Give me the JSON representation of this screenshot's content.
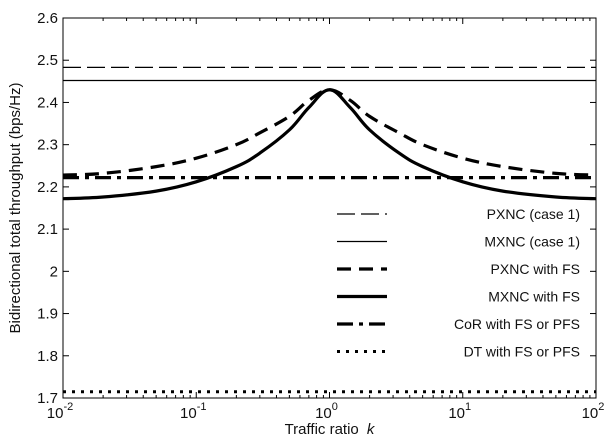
{
  "chart_data": {
    "type": "line",
    "xlabel": "Traffic ratio",
    "xlabel_var": "k",
    "ylabel": "Bidirectional total throughput (bps/Hz)",
    "xscale": "log",
    "xlim": [
      0.01,
      100
    ],
    "ylim": [
      1.7,
      2.6
    ],
    "x_ticks": [
      0.01,
      0.1,
      1,
      10,
      100
    ],
    "x_tick_labels": [
      {
        "base": "10",
        "exp": "-2"
      },
      {
        "base": "10",
        "exp": "-1"
      },
      {
        "base": "10",
        "exp": "0"
      },
      {
        "base": "10",
        "exp": "1"
      },
      {
        "base": "10",
        "exp": "2"
      }
    ],
    "y_ticks": [
      1.7,
      1.8,
      1.9,
      2.0,
      2.1,
      2.2,
      2.3,
      2.4,
      2.5,
      2.6
    ],
    "y_tick_labels": [
      "1.7",
      "1.8",
      "1.9",
      "2",
      "2.1",
      "2.2",
      "2.3",
      "2.4",
      "2.5",
      "2.6"
    ],
    "grid": false,
    "legend_position": "right",
    "series": [
      {
        "name": "PXNC (case 1)",
        "style": "thin-dashed",
        "x": [
          0.01,
          100
        ],
        "y": [
          2.483,
          2.483
        ]
      },
      {
        "name": "MXNC (case 1)",
        "style": "thin-solid",
        "x": [
          0.01,
          100
        ],
        "y": [
          2.452,
          2.452
        ]
      },
      {
        "name": "PXNC with FS",
        "style": "thick-dashed",
        "x": [
          0.01,
          0.02,
          0.05,
          0.1,
          0.2,
          0.3,
          0.5,
          0.7,
          1,
          1.43,
          2,
          3.33,
          5,
          10,
          20,
          50,
          100
        ],
        "y": [
          2.228,
          2.232,
          2.248,
          2.268,
          2.3,
          2.328,
          2.367,
          2.405,
          2.43,
          2.405,
          2.367,
          2.328,
          2.3,
          2.268,
          2.248,
          2.232,
          2.228
        ]
      },
      {
        "name": "MXNC with FS",
        "style": "thick-solid",
        "x": [
          0.01,
          0.02,
          0.05,
          0.1,
          0.2,
          0.3,
          0.5,
          0.7,
          1,
          1.43,
          2,
          3.33,
          5,
          10,
          20,
          50,
          100
        ],
        "y": [
          2.172,
          2.176,
          2.19,
          2.212,
          2.248,
          2.28,
          2.335,
          2.388,
          2.43,
          2.388,
          2.335,
          2.28,
          2.248,
          2.212,
          2.19,
          2.176,
          2.172
        ]
      },
      {
        "name": "CoR with FS or PFS",
        "style": "thick-dashdot",
        "x": [
          0.01,
          100
        ],
        "y": [
          2.222,
          2.222
        ]
      },
      {
        "name": "DT with FS or PFS",
        "style": "thick-dotted",
        "x": [
          0.01,
          100
        ],
        "y": [
          1.715,
          1.715
        ]
      }
    ]
  }
}
